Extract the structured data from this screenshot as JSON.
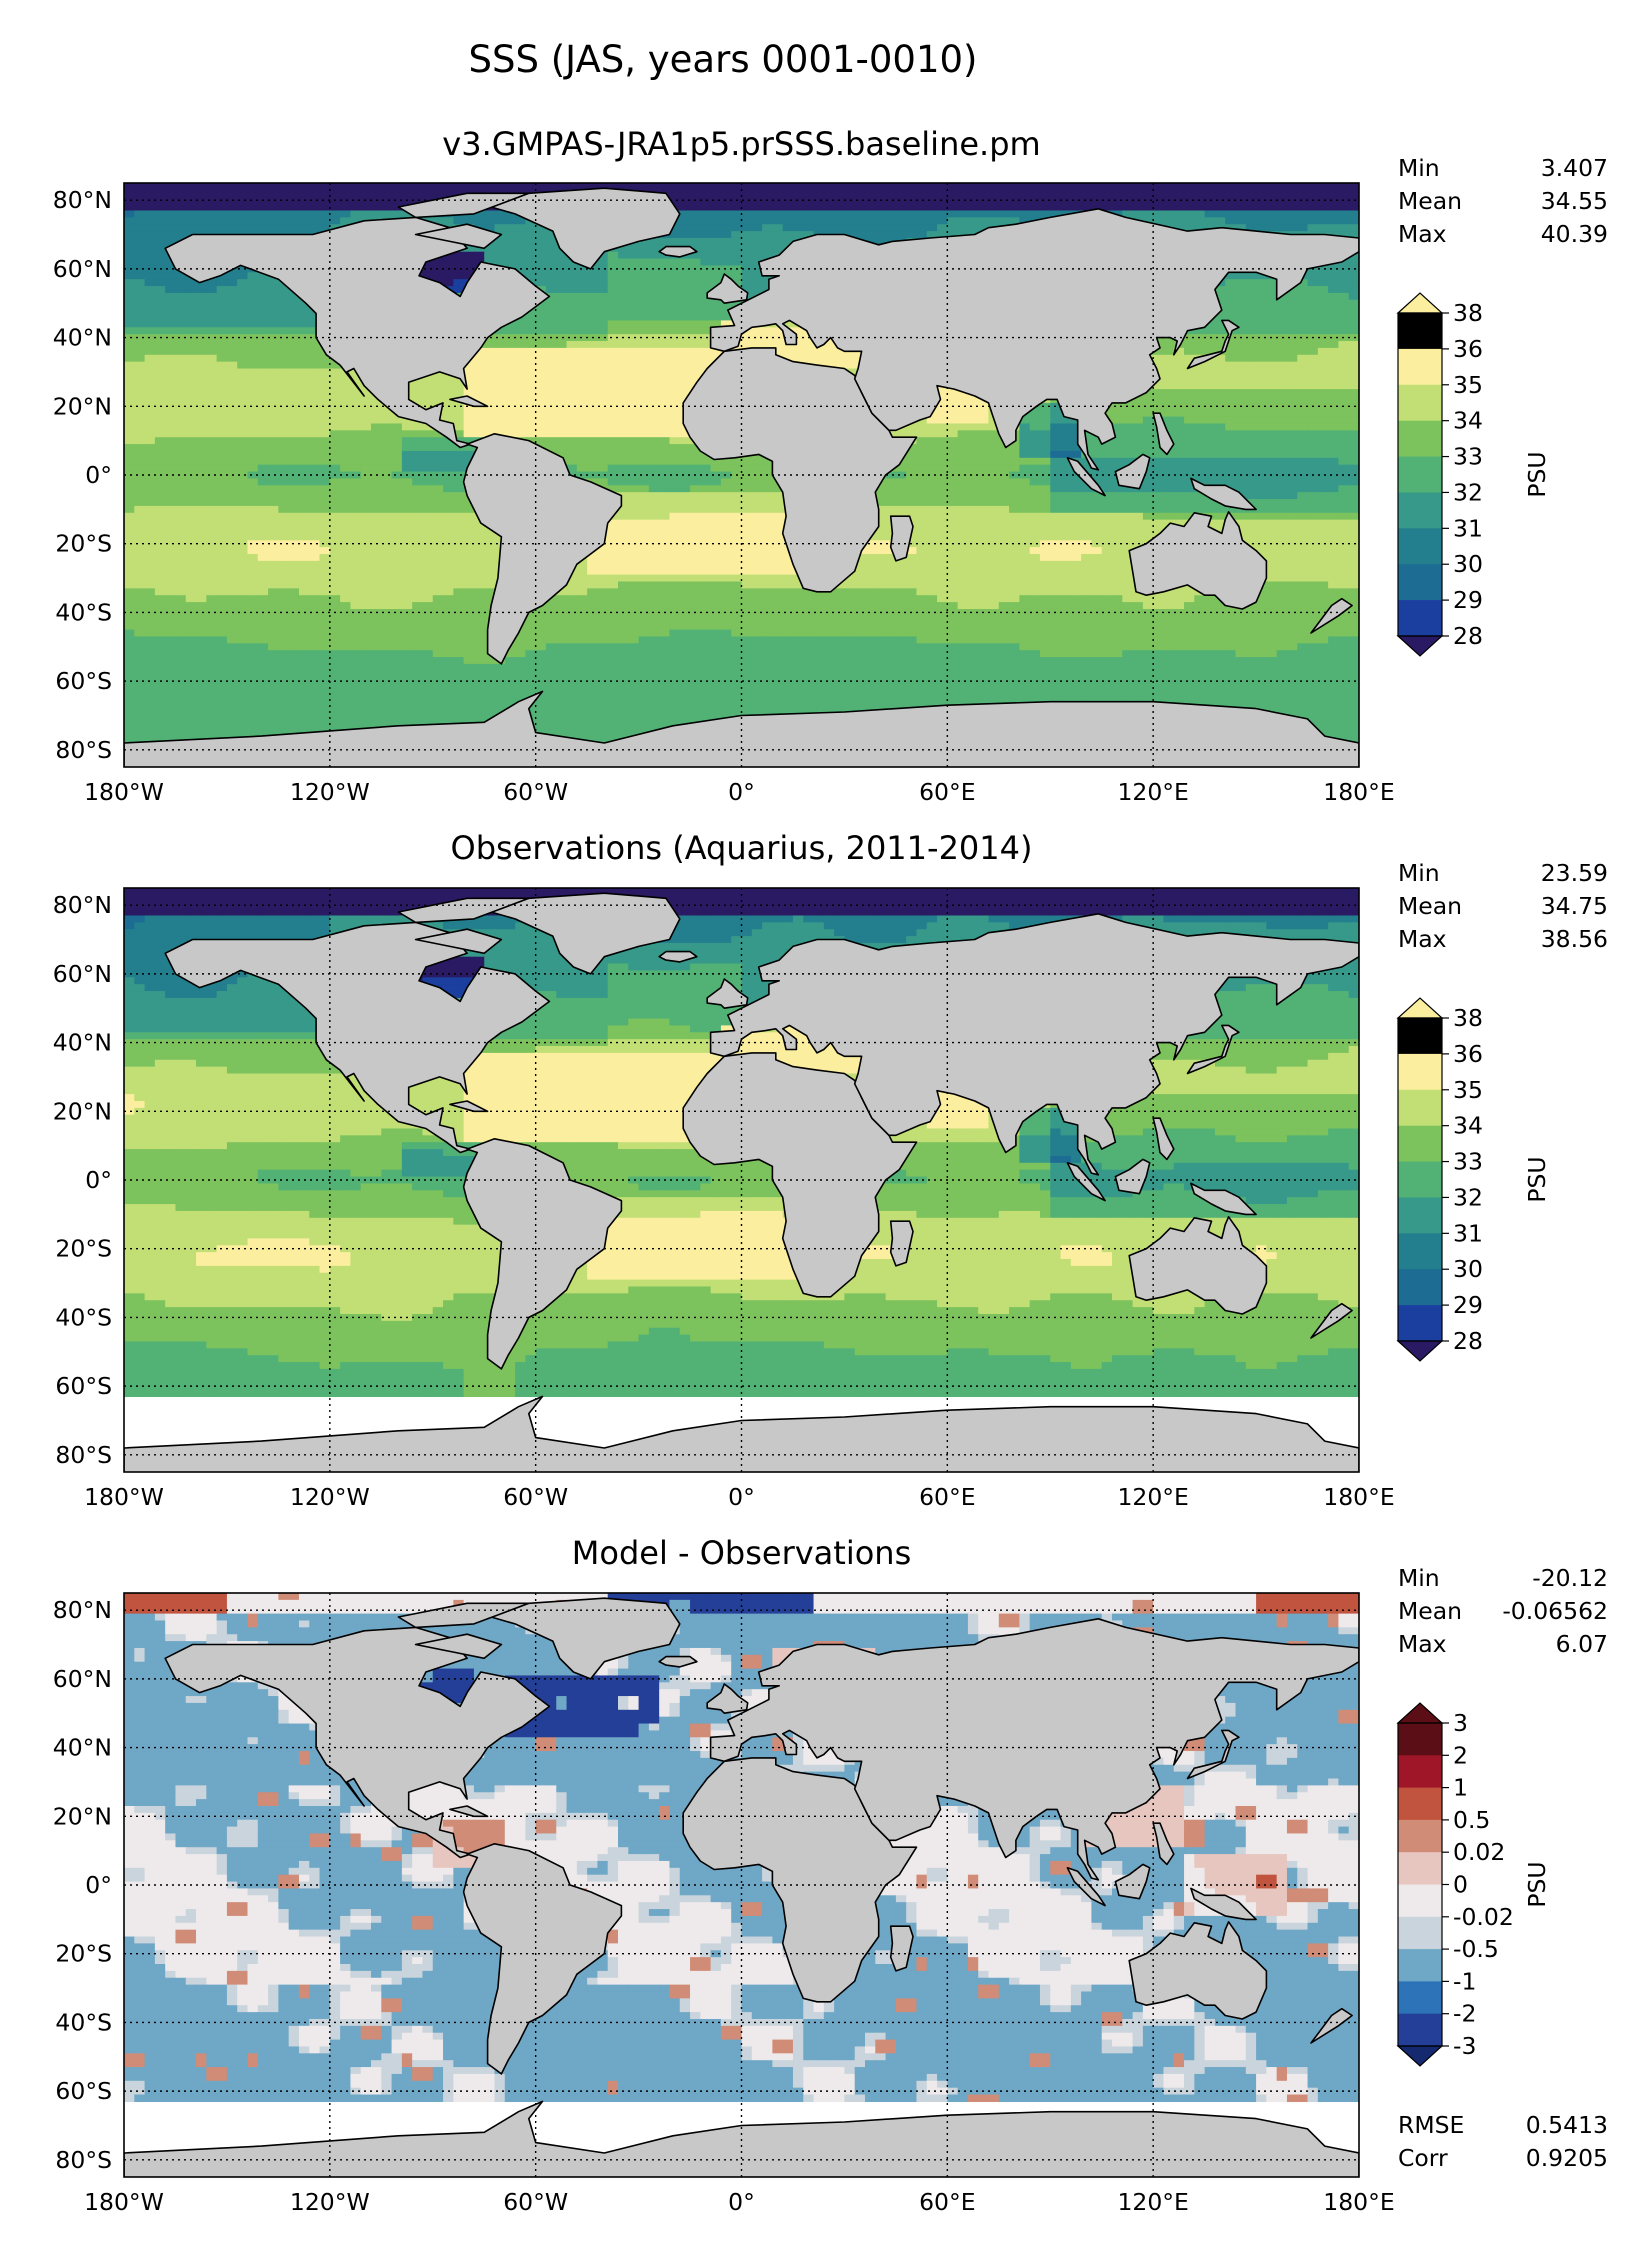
{
  "suptitle": "SSS (JAS, years 0001-0010)",
  "lon_ticks": [
    "180°W",
    "120°W",
    "60°W",
    "0°",
    "60°E",
    "120°E",
    "180°E"
  ],
  "lat_ticks": [
    "80°N",
    "60°N",
    "40°N",
    "20°N",
    "0°",
    "20°S",
    "40°S",
    "60°S",
    "80°S"
  ],
  "colors": {
    "land": "#c8c8c8",
    "no_data": "#ffffff",
    "sss_scale": [
      "#2a1a63",
      "#1a3f9f",
      "#1c6c94",
      "#237f8d",
      "#37998a",
      "#52b275",
      "#7cc25d",
      "#c2df75",
      "#fbee9e"
    ],
    "diff_scale": [
      "#152a6e",
      "#243f97",
      "#2c73b8",
      "#6fa7c6",
      "#c9d4dc",
      "#eeeaeb",
      "#e6c6bf",
      "#d08c76",
      "#c1543f",
      "#9e1628",
      "#5c0e16"
    ]
  },
  "chart_data": [
    {
      "type": "heatmap",
      "title": "v3.GMPAS-JRA1p5.prSSS.baseline.pm",
      "stats": [
        {
          "label": "Min",
          "value": "3.407"
        },
        {
          "label": "Mean",
          "value": "34.55"
        },
        {
          "label": "Max",
          "value": "40.39"
        }
      ],
      "colorbar": {
        "label": "PSU",
        "ticks": [
          "38",
          "36",
          "35",
          "34",
          "33",
          "32",
          "31",
          "30",
          "29",
          "28"
        ],
        "extend": "both",
        "palette": "sss_scale"
      },
      "xlim": [
        -180,
        180
      ],
      "ylim": [
        -85,
        85
      ],
      "field": "model",
      "obs_mask": false
    },
    {
      "type": "heatmap",
      "title": "Observations (Aquarius, 2011-2014)",
      "stats": [
        {
          "label": "Min",
          "value": "23.59"
        },
        {
          "label": "Mean",
          "value": "34.75"
        },
        {
          "label": "Max",
          "value": "38.56"
        }
      ],
      "colorbar": {
        "label": "PSU",
        "ticks": [
          "38",
          "36",
          "35",
          "34",
          "33",
          "32",
          "31",
          "30",
          "29",
          "28"
        ],
        "extend": "both",
        "palette": "sss_scale"
      },
      "xlim": [
        -180,
        180
      ],
      "ylim": [
        -85,
        85
      ],
      "field": "obs",
      "obs_mask": true
    },
    {
      "type": "heatmap",
      "title": "Model - Observations",
      "stats": [
        {
          "label": "Min",
          "value": "-20.12"
        },
        {
          "label": "Mean",
          "value": "-0.06562"
        },
        {
          "label": "Max",
          "value": "6.07"
        }
      ],
      "bottom_stats": [
        {
          "label": "RMSE",
          "value": "0.5413"
        },
        {
          "label": "Corr",
          "value": "0.9205"
        }
      ],
      "colorbar": {
        "label": "PSU",
        "ticks": [
          "3",
          "2",
          "1",
          "0.5",
          "0.02",
          "0",
          "-0.02",
          "-0.5",
          "-1",
          "-2",
          "-3"
        ],
        "extend": "both",
        "palette": "diff_scale"
      },
      "xlim": [
        -180,
        180
      ],
      "ylim": [
        -85,
        85
      ],
      "field": "diff",
      "obs_mask": true
    }
  ]
}
